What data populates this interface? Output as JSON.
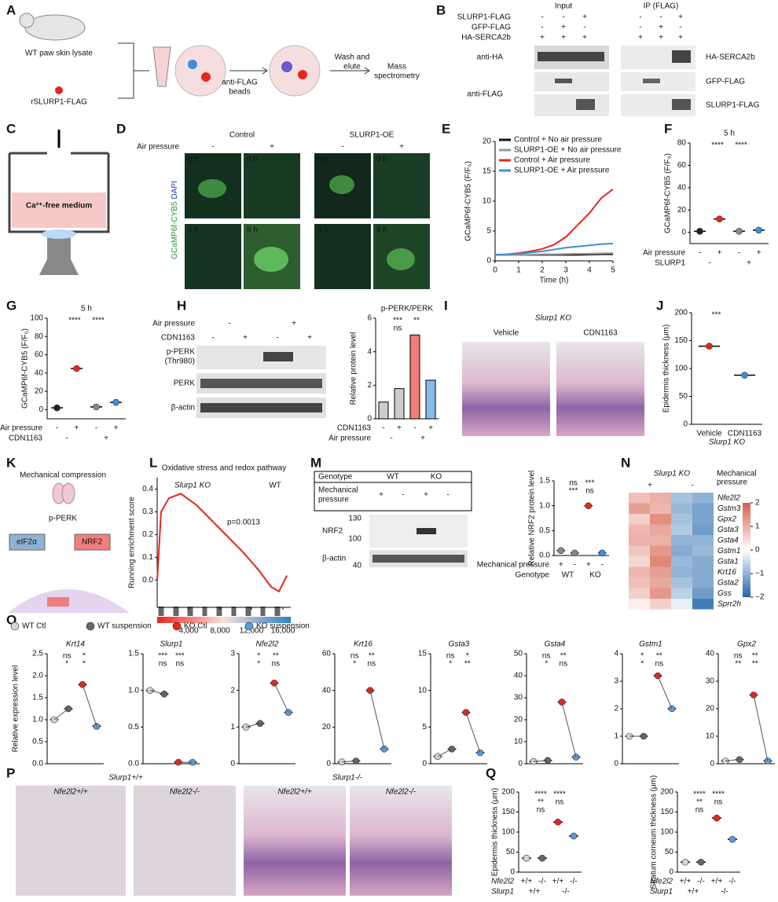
{
  "panel_letters": [
    "A",
    "B",
    "C",
    "D",
    "E",
    "F",
    "G",
    "H",
    "I",
    "J",
    "K",
    "L",
    "M",
    "N",
    "O",
    "P",
    "Q"
  ],
  "A": {
    "lysate": "WT paw skin lysate",
    "protein": "rSLURP1-FLAG",
    "beads": [
      "anti-FLAG",
      "beads"
    ],
    "wash": [
      "Wash and",
      "elute"
    ],
    "ms": [
      "Mass",
      "spectrometry"
    ]
  },
  "B": {
    "rows": [
      "SLURP1-FLAG",
      "GFP-FLAG",
      "HA-SERCA2b"
    ],
    "signs": [
      [
        "-",
        "-",
        "+"
      ],
      [
        "-",
        "+",
        "-"
      ],
      [
        "+",
        "+",
        "+"
      ]
    ],
    "groups": [
      "Input",
      "IP (FLAG)"
    ],
    "antibodies": [
      "anti-HA",
      "anti-FLAG"
    ],
    "bands": [
      "HA-SERCA2b",
      "GFP-FLAG",
      "SLURP1-FLAG"
    ]
  },
  "C": {
    "medium": "Ca²⁺-free medium"
  },
  "D": {
    "groups": [
      "Control",
      "SLURP1-OE"
    ],
    "condition": "Air pressure",
    "signs": [
      "-",
      "+"
    ],
    "times": [
      "0 h",
      "5 h"
    ],
    "stain": "GCaMP6f-CYB5",
    "counterstain": "DAPI"
  },
  "E": {
    "type": "line",
    "ylabel": "GCaMP6f-CYB5 (F/F₀)",
    "xlabel": "Time (h)",
    "xlim": [
      0,
      5
    ],
    "xticks": [
      0,
      1,
      2,
      3,
      4,
      5
    ],
    "ylim": [
      0,
      20
    ],
    "yticks": [
      0,
      5,
      10,
      15,
      20
    ],
    "x": [
      0,
      0.5,
      1,
      1.5,
      2,
      2.5,
      3,
      3.5,
      4,
      4.5,
      5
    ],
    "series": [
      {
        "name": "Control + No air pressure",
        "color": "#111111",
        "values": [
          1,
          1,
          1,
          1,
          1,
          1,
          1,
          1,
          1.05,
          1.1,
          1.1
        ]
      },
      {
        "name": "SLURP1-OE + No air pressure",
        "color": "#999999",
        "values": [
          1,
          1,
          1,
          1.05,
          1.1,
          1.1,
          1.15,
          1.2,
          1.2,
          1.25,
          1.3
        ]
      },
      {
        "name": "Control + Air pressure",
        "color": "#e8251f",
        "values": [
          1,
          1.1,
          1.3,
          1.6,
          2,
          2.7,
          4,
          6,
          8,
          10.5,
          12
        ]
      },
      {
        "name": "SLURP1-OE + Air pressure",
        "color": "#3b8fdd",
        "values": [
          1,
          1.1,
          1.2,
          1.4,
          1.6,
          1.9,
          2.2,
          2.4,
          2.6,
          2.8,
          2.9
        ]
      }
    ]
  },
  "F": {
    "type": "dot",
    "title": "5 h",
    "ylabel": "GCaMP6f-CYB5 (F/F₀)",
    "ylim": [
      -10,
      80
    ],
    "yticks": [
      0,
      20,
      40,
      60,
      80
    ],
    "values": [
      1,
      12,
      1,
      2
    ],
    "colors": [
      "#222222",
      "#e8251f",
      "#888888",
      "#3b8fdd"
    ],
    "sig": [
      "****",
      "****"
    ],
    "xrows": [
      {
        "name": "Air pressure",
        "labels": [
          "-",
          "+",
          "-",
          "+"
        ]
      },
      {
        "name": "SLURP1",
        "labels": [
          "-",
          "+"
        ]
      }
    ]
  },
  "G": {
    "type": "dot",
    "title": "5 h",
    "ylabel": "GCaMP6f-CYB5 (F/F₀)",
    "ylim": [
      -10,
      100
    ],
    "yticks": [
      0,
      20,
      40,
      60,
      80,
      100
    ],
    "values": [
      2,
      45,
      3,
      8
    ],
    "colors": [
      "#222222",
      "#e8251f",
      "#888888",
      "#3b8fdd"
    ],
    "sig": [
      "****",
      "****"
    ],
    "xrows": [
      {
        "name": "Air pressure",
        "labels": [
          "-",
          "+",
          "-",
          "+"
        ]
      },
      {
        "name": "CDN1163",
        "labels": [
          "-",
          "+"
        ]
      }
    ]
  },
  "H": {
    "condition": "Air pressure",
    "treatment": "CDN1163",
    "signs": [
      "-",
      "+"
    ],
    "blots": [
      "p-PERK",
      "(Thr980)",
      "PERK",
      "β-actin"
    ],
    "chart": {
      "type": "bar",
      "title": "p-PERK/PERK",
      "ylabel": "Relative protein level",
      "ylim": [
        0,
        6
      ],
      "yticks": [
        0,
        2,
        4,
        6
      ],
      "values": [
        1,
        1.8,
        5,
        2.3
      ],
      "colors": [
        "#aaaaaa",
        "#aaaaaa",
        "#e8251f",
        "#3b8fdd"
      ],
      "sig": [
        "***",
        "**",
        "ns"
      ],
      "xrows": [
        {
          "name": "CDN1163",
          "labels": [
            "-",
            "+",
            "-",
            "+"
          ]
        },
        {
          "name": "Air pressure",
          "labels": [
            "-",
            "+"
          ]
        }
      ]
    }
  },
  "I": {
    "genotype": "Slurp1 KO",
    "groups": [
      "Vehicle",
      "CDN1163"
    ]
  },
  "J": {
    "type": "dot",
    "ylabel": "Epidermis thickness (μm)",
    "ylim": [
      0,
      200
    ],
    "yticks": [
      0,
      50,
      100,
      150,
      200
    ],
    "values": [
      140,
      88
    ],
    "colors": [
      "#e8251f",
      "#3b8fdd"
    ],
    "sig": [
      "***"
    ],
    "xrows": [
      {
        "labels": [
          "Vehicle",
          "CDN1163"
        ]
      }
    ],
    "genotype": "Slurp1 KO"
  },
  "K": {
    "stimulus": "Mechanical compression",
    "kinase": "p-PERK",
    "targets": [
      "eIF2α",
      "NRF2"
    ]
  },
  "L": {
    "type": "line",
    "title": "Oxidative stress and redox pathway",
    "ylabel": "Running enrichment score",
    "xlim": [
      0,
      17000
    ],
    "ylim": [
      -0.12,
      0.45
    ],
    "xticks": [
      {
        "value": 4000,
        "label": "4,000"
      },
      {
        "value": 8000,
        "label": "8,000"
      },
      {
        "value": 12000,
        "label": "12,000"
      },
      {
        "value": 16000,
        "label": "16,000"
      }
    ],
    "yticks": [
      {
        "value": 0,
        "label": "0.0"
      },
      0.1,
      0.2,
      0.3,
      0.4
    ],
    "x": [
      0,
      500,
      1500,
      3000,
      5000,
      7000,
      9000,
      11000,
      13000,
      14500,
      15500,
      16500
    ],
    "series": [
      {
        "color": "#e8251f",
        "values": [
          0,
          0.3,
          0.36,
          0.38,
          0.33,
          0.26,
          0.19,
          0.12,
          0.04,
          -0.03,
          -0.05,
          0.02
        ]
      }
    ],
    "annotations": [
      "Slurp1 KO",
      "WT",
      "p=0.0013"
    ]
  },
  "M": {
    "blot": {
      "header": "Genotype",
      "genotypes": [
        "WT",
        "KO"
      ],
      "condition": [
        "Mechanical",
        "pressure"
      ],
      "signs": [
        "+",
        "-",
        "+",
        "-"
      ],
      "markers": [
        "130",
        "100",
        "40"
      ],
      "proteins": [
        "NRF2",
        "β-actin"
      ]
    },
    "chart": {
      "type": "dot",
      "ylabel": "Relative NRF2 protein level",
      "ylim": [
        0,
        1.5
      ],
      "yticks": [
        {
          "value": 0,
          "label": "0.0"
        },
        0.5,
        {
          "value": 1,
          "label": "1.0"
        },
        1.5
      ],
      "values": [
        0.1,
        0.05,
        1,
        0.05
      ],
      "colors": [
        "#888888",
        "#888888",
        "#e8251f",
        "#3b8fdd"
      ],
      "sig": [
        "ns",
        "***",
        "***",
        "ns"
      ],
      "xrows": [
        {
          "name": "Mechanical pressure",
          "labels": [
            "+",
            "-",
            "+",
            "-"
          ]
        },
        {
          "name": "Genotype",
          "labels": [
            "WT",
            "KO"
          ]
        }
      ]
    }
  },
  "N": {
    "header": "Slurp1 KO",
    "signs": [
      "+",
      "-"
    ],
    "condition": [
      "Mechanical",
      "pressure"
    ],
    "genes": [
      "Nfe2l2",
      "Gstm3",
      "Gpx2",
      "Gsta3",
      "Gsta4",
      "Gstm1",
      "Gsta1",
      "Krt16",
      "Gsta2",
      "Gss",
      "Sprr2h"
    ],
    "values": [
      [
        0.8,
        1.0,
        -0.8,
        -1.0
      ],
      [
        1.2,
        0.9,
        -0.9,
        -1.2
      ],
      [
        0.6,
        1.4,
        -0.8,
        -1.2
      ],
      [
        0.9,
        1.1,
        -0.7,
        -1.3
      ],
      [
        1.0,
        1.0,
        -1.0,
        -1.0
      ],
      [
        0.7,
        1.3,
        -1.1,
        -0.9
      ],
      [
        0.5,
        1.5,
        -0.9,
        -1.1
      ],
      [
        0.9,
        1.2,
        -1.0,
        -1.1
      ],
      [
        0.8,
        1.1,
        -0.8,
        -1.1
      ],
      [
        0.6,
        1.3,
        -0.6,
        -1.3
      ],
      [
        0.2,
        0.6,
        -0.2,
        -1.7
      ]
    ],
    "clim": [
      -2,
      2
    ],
    "cticks": [
      2,
      1,
      0,
      {
        "value": -1,
        "label": "−1"
      },
      {
        "value": -2,
        "label": "−2"
      }
    ]
  },
  "O": {
    "ylabel": "Relative expression level",
    "legend": [
      {
        "name": "WT Ctl",
        "color": "#d4d4d4"
      },
      {
        "name": "WT suspension",
        "color": "#666666"
      },
      {
        "name": "KO Ctl",
        "color": "#e8251f"
      },
      {
        "name": "KO suspension",
        "color": "#5b9bdd"
      }
    ],
    "plots": [
      {
        "type": "dot",
        "title": "Krt14",
        "ylim": [
          0,
          2.5
        ],
        "yticks": [
          {
            "value": 0,
            "label": "0.0"
          },
          0.5,
          {
            "value": 1,
            "label": "1.0"
          },
          1.5,
          {
            "value": 2,
            "label": "2.0"
          },
          2.5
        ],
        "values": [
          1,
          1.25,
          1.8,
          0.85
        ],
        "sig": [
          "ns",
          "*",
          "*",
          "*"
        ]
      },
      {
        "type": "dot",
        "title": "Slurp1",
        "ylim": [
          0,
          1.5
        ],
        "yticks": [
          {
            "value": 0,
            "label": "0.0"
          },
          0.5,
          {
            "value": 1,
            "label": "1.0"
          },
          1.5
        ],
        "values": [
          1,
          0.95,
          0.02,
          0.02
        ],
        "sig": [
          "***",
          "***",
          "ns",
          "ns"
        ]
      },
      {
        "type": "dot",
        "title": "Nfe2l2",
        "ylim": [
          0,
          3
        ],
        "yticks": [
          0,
          1,
          2,
          3
        ],
        "values": [
          1,
          1.1,
          2.2,
          1.4
        ],
        "sig": [
          "*",
          "**",
          "*",
          "ns"
        ]
      },
      {
        "type": "dot",
        "title": "Krt16",
        "ylim": [
          0,
          60
        ],
        "yticks": [
          0,
          20,
          40,
          60
        ],
        "values": [
          1,
          1.5,
          40,
          8
        ],
        "sig": [
          "ns",
          "**",
          "*",
          "ns"
        ]
      },
      {
        "type": "dot",
        "title": "Gsta3",
        "ylim": [
          0,
          15
        ],
        "yticks": [
          0,
          5,
          10,
          15
        ],
        "values": [
          1,
          2,
          7,
          1.5
        ],
        "sig": [
          "ns",
          "*",
          "*",
          "**"
        ]
      },
      {
        "type": "dot",
        "title": "Gsta4",
        "ylim": [
          0,
          50
        ],
        "yticks": [
          0,
          10,
          20,
          30,
          40,
          50
        ],
        "values": [
          1,
          1.5,
          28,
          3
        ],
        "sig": [
          "ns",
          "**",
          "*",
          "ns"
        ]
      },
      {
        "type": "dot",
        "title": "Gstm1",
        "ylim": [
          0,
          4
        ],
        "yticks": [
          0,
          1,
          2,
          3,
          4
        ],
        "values": [
          1,
          1,
          3.2,
          2
        ],
        "sig": [
          "*",
          "**",
          "*",
          "ns"
        ]
      },
      {
        "type": "dot",
        "title": "Gpx2",
        "ylim": [
          0,
          40
        ],
        "yticks": [
          0,
          10,
          20,
          30,
          40
        ],
        "values": [
          1,
          1.5,
          25,
          1
        ],
        "sig": [
          "ns",
          "**",
          "**",
          "**"
        ]
      }
    ]
  },
  "P": {
    "groups": [
      "Slurp1+/+",
      "Slurp1-/-"
    ],
    "subgroups": [
      "Nfe2l2+/+",
      "Nfe2l2-/-"
    ]
  },
  "Q": {
    "plots": [
      {
        "type": "dot",
        "ylabel": "Epidermis thickness (μm)",
        "ylim": [
          0,
          200
        ],
        "yticks": [
          0,
          50,
          100,
          150,
          200
        ],
        "values": [
          35,
          35,
          125,
          90
        ],
        "colors": [
          "#d4d4d4",
          "#666666",
          "#e8251f",
          "#5b9bdd"
        ],
        "sig": [
          "****",
          "****",
          "**",
          "ns",
          "ns"
        ],
        "xrows": [
          {
            "name": "Nfe2l2",
            "labels": [
              "+/+",
              "-/-",
              "+/+",
              "-/-"
            ]
          },
          {
            "name": "Slurp1",
            "labels": [
              "+/+",
              "-/-"
            ]
          }
        ]
      },
      {
        "type": "dot",
        "ylabel": "Stratum corneum thickness (μm)",
        "ylim": [
          0,
          200
        ],
        "yticks": [
          0,
          50,
          100,
          150,
          200
        ],
        "values": [
          25,
          25,
          135,
          82
        ],
        "colors": [
          "#d4d4d4",
          "#666666",
          "#e8251f",
          "#5b9bdd"
        ],
        "sig": [
          "****",
          "****",
          "**",
          "ns",
          "ns"
        ],
        "xrows": [
          {
            "name": "Nfe2l2",
            "labels": [
              "+/+",
              "-/-",
              "+/+",
              "-/-"
            ]
          },
          {
            "name": "Slurp1",
            "labels": [
              "+/+",
              "-/-"
            ]
          }
        ]
      }
    ]
  }
}
